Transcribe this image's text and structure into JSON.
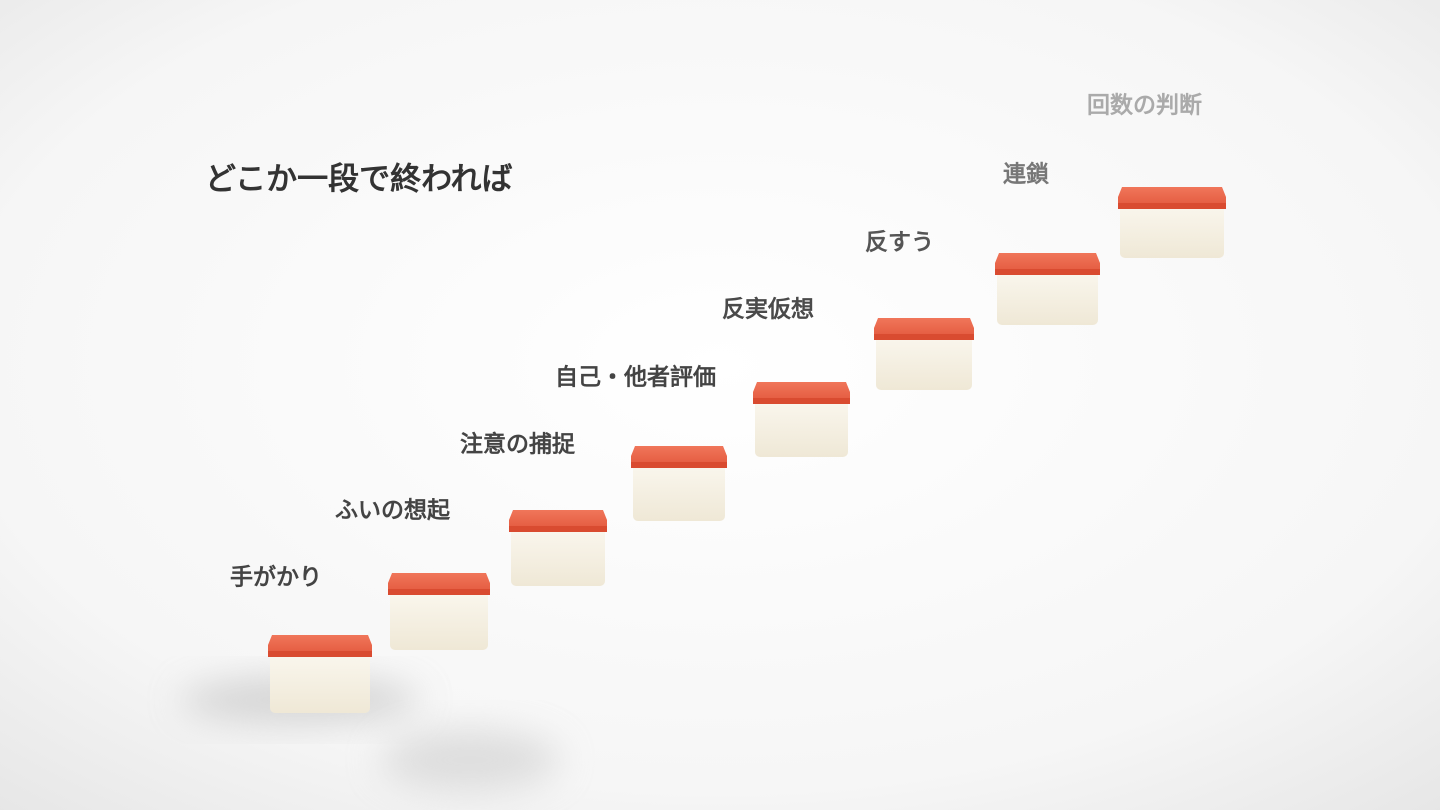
{
  "title": "どこか一段で終われば",
  "steps": [
    {
      "label": "手がかり"
    },
    {
      "label": "ふいの想起"
    },
    {
      "label": "注意の捕捉"
    },
    {
      "label": "自己・他者評価"
    },
    {
      "label": "反実仮想"
    },
    {
      "label": "反すう"
    },
    {
      "label": "連鎖"
    },
    {
      "label": "回数の判断"
    }
  ]
}
